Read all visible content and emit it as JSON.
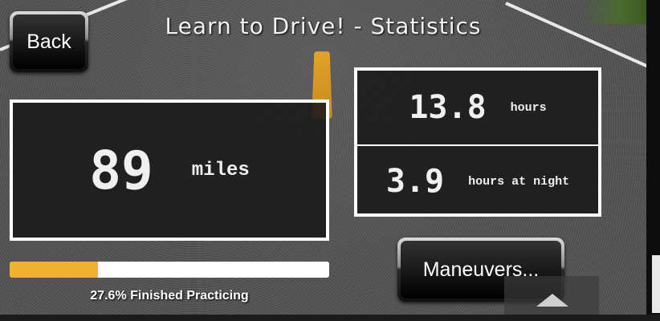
{
  "header": {
    "title": "Learn to Drive! - Statistics"
  },
  "toolbar": {
    "back_label": "Back",
    "maneuvers_label": "Maneuvers..."
  },
  "stats": {
    "miles_value": "89",
    "miles_unit": "miles",
    "hours_value": "13.8",
    "hours_unit": "hours",
    "night_value": "3.9",
    "night_unit": "hours at night"
  },
  "progress": {
    "percent": 27.6,
    "label": "27.6% Finished Practicing",
    "fill_color": "#f0b030"
  }
}
